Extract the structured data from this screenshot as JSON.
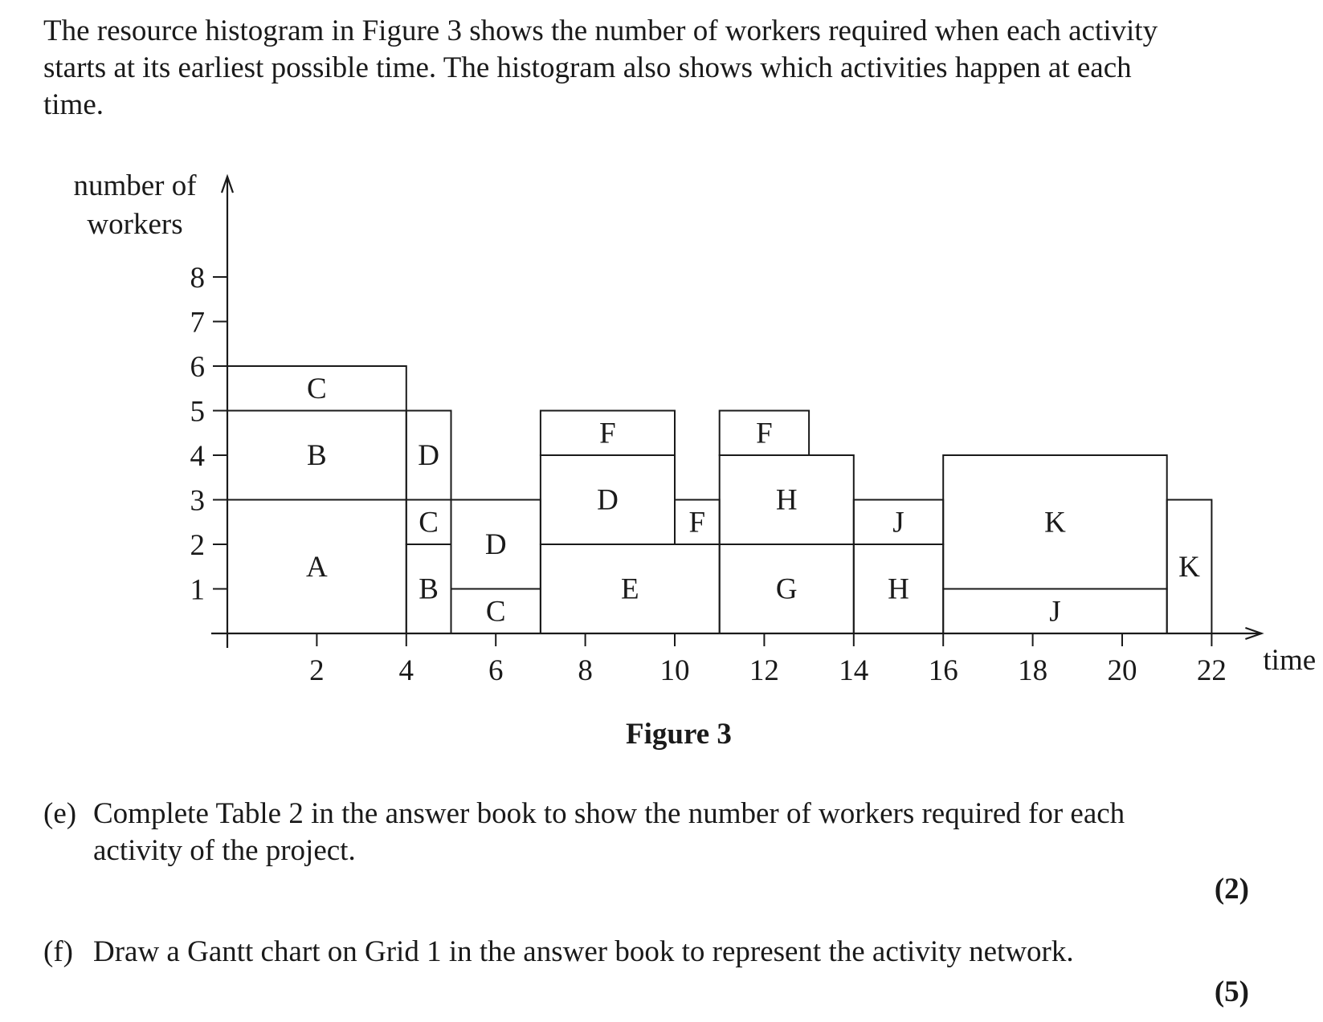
{
  "intro_text": "The resource histogram in Figure 3 shows the number of workers required when each activity starts at its earliest possible time. The histogram also shows which activities happen at each time.",
  "figure_caption": "Figure 3",
  "questions": [
    {
      "label": "(e)",
      "text": "Complete Table 2 in the answer book to show the number of workers required for each activity of the project.",
      "marks": "(2)"
    },
    {
      "label": "(f)",
      "text": "Draw a Gantt chart on Grid 1 in the answer book to represent the activity network.",
      "marks": "(5)"
    }
  ],
  "chart_data": {
    "type": "bar",
    "subtype": "stacked resource histogram",
    "xlabel": "time",
    "ylabel": "number of workers",
    "xlim": [
      0,
      22
    ],
    "ylim": [
      0,
      8
    ],
    "x_ticks": [
      2,
      4,
      6,
      8,
      10,
      12,
      14,
      16,
      18,
      20,
      22
    ],
    "y_ticks": [
      1,
      2,
      3,
      4,
      5,
      6,
      7,
      8
    ],
    "grid": false,
    "blocks": [
      {
        "activity": "A",
        "start": 0,
        "end": 4,
        "bottom": 0,
        "top": 3
      },
      {
        "activity": "B",
        "start": 0,
        "end": 4,
        "bottom": 3,
        "top": 5
      },
      {
        "activity": "C",
        "start": 0,
        "end": 4,
        "bottom": 5,
        "top": 6
      },
      {
        "activity": "B",
        "start": 4,
        "end": 5,
        "bottom": 0,
        "top": 2
      },
      {
        "activity": "C",
        "start": 4,
        "end": 5,
        "bottom": 2,
        "top": 3
      },
      {
        "activity": "D",
        "start": 4,
        "end": 5,
        "bottom": 3,
        "top": 5
      },
      {
        "activity": "C",
        "start": 5,
        "end": 7,
        "bottom": 0,
        "top": 1
      },
      {
        "activity": "D",
        "start": 5,
        "end": 7,
        "bottom": 1,
        "top": 3
      },
      {
        "activity": "E",
        "start": 7,
        "end": 11,
        "bottom": 0,
        "top": 2
      },
      {
        "activity": "D",
        "start": 7,
        "end": 10,
        "bottom": 2,
        "top": 4
      },
      {
        "activity": "F",
        "start": 7,
        "end": 10,
        "bottom": 4,
        "top": 5
      },
      {
        "activity": "F",
        "start": 10,
        "end": 11,
        "bottom": 2,
        "top": 3
      },
      {
        "activity": "G",
        "start": 11,
        "end": 14,
        "bottom": 0,
        "top": 2
      },
      {
        "activity": "H",
        "start": 11,
        "end": 14,
        "bottom": 2,
        "top": 4
      },
      {
        "activity": "F",
        "start": 11,
        "end": 13,
        "bottom": 4,
        "top": 5
      },
      {
        "activity": "H",
        "start": 14,
        "end": 16,
        "bottom": 0,
        "top": 2
      },
      {
        "activity": "J",
        "start": 14,
        "end": 16,
        "bottom": 2,
        "top": 3
      },
      {
        "activity": "J",
        "start": 16,
        "end": 21,
        "bottom": 0,
        "top": 1
      },
      {
        "activity": "K",
        "start": 16,
        "end": 21,
        "bottom": 1,
        "top": 4
      },
      {
        "activity": "K",
        "start": 21,
        "end": 22,
        "bottom": 0,
        "top": 3
      }
    ]
  }
}
